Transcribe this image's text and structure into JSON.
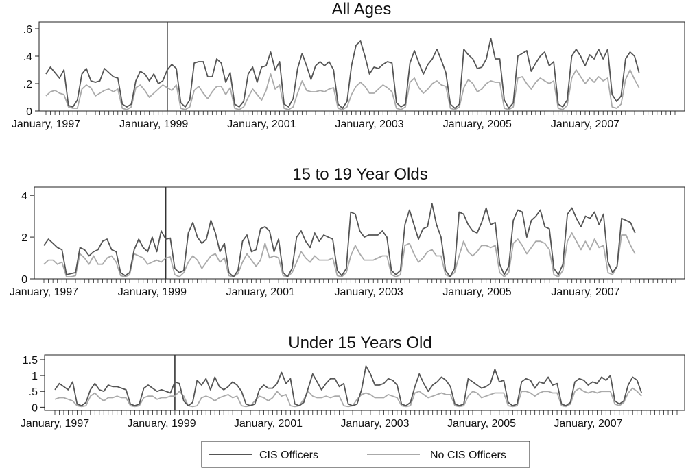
{
  "chart_data": [
    {
      "type": "line",
      "title": "All Ages",
      "ylim": [
        0,
        0.65
      ],
      "yticks": [
        0,
        0.2,
        0.4,
        0.6
      ],
      "ytick_labels": [
        "0",
        ".2",
        ".4",
        ".6"
      ],
      "xlim": [
        0,
        140
      ],
      "xticks": [
        0,
        24,
        48,
        72,
        96,
        120
      ],
      "xtick_labels": [
        "January, 1997",
        "January, 1999",
        "January, 2001",
        "January, 2003",
        "January, 2005",
        "January, 2007"
      ],
      "vline_x": 27,
      "grid": false,
      "series": [
        {
          "name": "CIS Officers",
          "values": [
            0.27,
            0.32,
            0.28,
            0.24,
            0.3,
            0.04,
            0.03,
            0.08,
            0.27,
            0.31,
            0.22,
            0.21,
            0.22,
            0.31,
            0.28,
            0.25,
            0.24,
            0.05,
            0.03,
            0.05,
            0.22,
            0.29,
            0.27,
            0.22,
            0.27,
            0.2,
            0.22,
            0.3,
            0.34,
            0.31,
            0.06,
            0.03,
            0.08,
            0.35,
            0.36,
            0.36,
            0.25,
            0.25,
            0.38,
            0.35,
            0.21,
            0.28,
            0.05,
            0.03,
            0.07,
            0.27,
            0.32,
            0.21,
            0.32,
            0.33,
            0.43,
            0.3,
            0.36,
            0.05,
            0.03,
            0.09,
            0.31,
            0.42,
            0.33,
            0.23,
            0.33,
            0.36,
            0.33,
            0.36,
            0.3,
            0.05,
            0.02,
            0.07,
            0.33,
            0.48,
            0.51,
            0.4,
            0.27,
            0.32,
            0.31,
            0.34,
            0.36,
            0.35,
            0.06,
            0.03,
            0.05,
            0.35,
            0.44,
            0.35,
            0.27,
            0.34,
            0.38,
            0.45,
            0.37,
            0.28,
            0.05,
            0.02,
            0.05,
            0.45,
            0.41,
            0.38,
            0.31,
            0.32,
            0.38,
            0.53,
            0.38,
            0.38,
            0.08,
            0.02,
            0.06,
            0.4,
            0.42,
            0.44,
            0.29,
            0.35,
            0.4,
            0.43,
            0.33,
            0.36,
            0.05,
            0.03,
            0.08,
            0.4,
            0.45,
            0.4,
            0.33,
            0.41,
            0.38,
            0.45,
            0.38,
            0.45,
            0.12,
            0.07,
            0.11,
            0.38,
            0.43,
            0.4,
            0.28
          ]
        },
        {
          "name": "No CIS Officers",
          "values": [
            0.11,
            0.14,
            0.15,
            0.13,
            0.12,
            0.03,
            0.02,
            0.02,
            0.16,
            0.19,
            0.17,
            0.11,
            0.13,
            0.15,
            0.16,
            0.14,
            0.16,
            0.02,
            0.01,
            0.03,
            0.17,
            0.19,
            0.15,
            0.1,
            0.13,
            0.16,
            0.19,
            0.17,
            0.15,
            0.19,
            0.02,
            0.01,
            0.03,
            0.15,
            0.18,
            0.13,
            0.09,
            0.14,
            0.18,
            0.18,
            0.12,
            0.17,
            0.02,
            0.01,
            0.03,
            0.1,
            0.16,
            0.12,
            0.08,
            0.15,
            0.27,
            0.16,
            0.19,
            0.02,
            0.01,
            0.03,
            0.13,
            0.22,
            0.15,
            0.14,
            0.14,
            0.15,
            0.14,
            0.16,
            0.17,
            0.02,
            0.01,
            0.03,
            0.12,
            0.18,
            0.21,
            0.18,
            0.13,
            0.13,
            0.16,
            0.19,
            0.17,
            0.14,
            0.02,
            0.01,
            0.03,
            0.21,
            0.24,
            0.17,
            0.13,
            0.16,
            0.2,
            0.22,
            0.19,
            0.18,
            0.02,
            0.01,
            0.03,
            0.17,
            0.23,
            0.2,
            0.14,
            0.16,
            0.2,
            0.22,
            0.21,
            0.21,
            0.02,
            0.01,
            0.03,
            0.24,
            0.25,
            0.2,
            0.16,
            0.21,
            0.24,
            0.22,
            0.2,
            0.22,
            0.02,
            0.01,
            0.04,
            0.24,
            0.3,
            0.25,
            0.2,
            0.24,
            0.21,
            0.25,
            0.22,
            0.24,
            0.03,
            0.02,
            0.05,
            0.23,
            0.3,
            0.23,
            0.17
          ]
        }
      ]
    },
    {
      "type": "line",
      "title": "15 to 19 Year Olds",
      "ylim": [
        0,
        4.4
      ],
      "yticks": [
        0,
        2,
        4
      ],
      "ytick_labels": [
        "0",
        "2",
        "4"
      ],
      "xlim": [
        0,
        140
      ],
      "xticks": [
        0,
        24,
        48,
        72,
        96,
        120
      ],
      "xtick_labels": [
        "January, 1997",
        "January, 1999",
        "January, 2001",
        "January, 2003",
        "January, 2005",
        "January, 2007"
      ],
      "vline_x": 27,
      "grid": false,
      "series": [
        {
          "name": "CIS Officers",
          "values": [
            1.6,
            1.9,
            1.7,
            1.5,
            1.4,
            0.2,
            0.25,
            0.3,
            1.5,
            1.4,
            1.1,
            1.3,
            1.4,
            1.8,
            1.9,
            1.4,
            1.3,
            0.3,
            0.15,
            0.3,
            1.4,
            1.9,
            1.5,
            1.3,
            2.0,
            1.3,
            2.3,
            1.9,
            1.95,
            0.5,
            0.3,
            0.4,
            2.2,
            2.7,
            2.0,
            1.7,
            1.9,
            2.8,
            2.2,
            1.3,
            1.7,
            0.3,
            0.1,
            0.4,
            1.8,
            2.1,
            1.3,
            1.4,
            2.4,
            2.5,
            2.3,
            1.3,
            1.9,
            0.3,
            0.1,
            0.5,
            2.0,
            2.3,
            1.8,
            1.5,
            2.2,
            1.8,
            2.1,
            2.0,
            1.9,
            0.4,
            0.15,
            0.5,
            3.2,
            3.1,
            2.3,
            2.0,
            2.1,
            2.1,
            2.1,
            2.3,
            2.0,
            0.4,
            0.2,
            0.4,
            2.6,
            3.3,
            2.6,
            1.9,
            2.4,
            2.5,
            3.6,
            2.6,
            2.0,
            0.4,
            0.1,
            0.5,
            3.2,
            3.1,
            2.6,
            2.3,
            2.2,
            2.7,
            3.4,
            2.6,
            2.7,
            0.7,
            0.2,
            0.6,
            2.8,
            3.3,
            3.2,
            2.0,
            2.8,
            3.0,
            3.3,
            2.5,
            2.4,
            0.5,
            0.2,
            0.7,
            3.1,
            3.4,
            2.9,
            2.5,
            3.0,
            2.9,
            3.2,
            2.6,
            3.1,
            0.8,
            0.3,
            0.6,
            2.9,
            2.8,
            2.7,
            2.2
          ]
        },
        {
          "name": "No CIS Officers",
          "values": [
            0.7,
            0.9,
            0.9,
            0.7,
            0.8,
            0.1,
            0.1,
            0.15,
            1.2,
            1.0,
            0.7,
            1.1,
            0.7,
            0.7,
            1.0,
            1.1,
            0.8,
            0.15,
            0.1,
            0.2,
            1.2,
            1.1,
            1.0,
            0.7,
            0.8,
            0.9,
            0.8,
            1.0,
            1.05,
            0.2,
            0.1,
            0.3,
            0.8,
            1.1,
            0.9,
            0.5,
            0.8,
            1.1,
            1.2,
            0.8,
            1.0,
            0.15,
            0.1,
            0.25,
            0.8,
            1.2,
            0.9,
            0.6,
            0.9,
            1.7,
            1.0,
            1.1,
            1.0,
            0.15,
            0.1,
            0.3,
            0.8,
            1.3,
            1.0,
            0.8,
            1.1,
            0.9,
            0.9,
            0.9,
            1.0,
            0.15,
            0.1,
            0.3,
            1.1,
            1.6,
            1.2,
            0.9,
            0.9,
            0.9,
            1.0,
            1.1,
            1.1,
            0.2,
            0.1,
            0.2,
            1.6,
            1.7,
            1.2,
            0.8,
            1.0,
            1.3,
            1.4,
            1.1,
            1.1,
            0.2,
            0.1,
            0.3,
            1.1,
            1.8,
            1.3,
            1.1,
            1.3,
            1.6,
            1.6,
            1.5,
            1.6,
            0.3,
            0.1,
            0.3,
            1.7,
            1.9,
            1.6,
            1.2,
            1.5,
            1.8,
            1.8,
            1.7,
            1.4,
            0.2,
            0.1,
            0.4,
            1.8,
            2.2,
            1.8,
            1.4,
            1.8,
            1.4,
            1.9,
            1.5,
            1.6,
            0.3,
            0.2,
            0.6,
            2.1,
            2.1,
            1.6,
            1.2
          ]
        }
      ]
    },
    {
      "type": "line",
      "title": "Under 15 Years Old",
      "ylim": [
        -0.1,
        1.65
      ],
      "yticks": [
        0,
        0.5,
        1,
        1.5
      ],
      "ytick_labels": [
        "0",
        ".5",
        "1",
        "1.5"
      ],
      "xlim": [
        0,
        140
      ],
      "xticks": [
        0,
        24,
        48,
        72,
        96,
        120
      ],
      "xtick_labels": [
        "January, 1997",
        "January, 1999",
        "January, 2001",
        "January, 2003",
        "January, 2005",
        "January, 2007"
      ],
      "vline_x": 27,
      "grid": false,
      "series": [
        {
          "name": "CIS Officers",
          "values": [
            0.55,
            0.75,
            0.65,
            0.55,
            0.8,
            0.1,
            0.05,
            0.15,
            0.55,
            0.75,
            0.55,
            0.5,
            0.7,
            0.65,
            0.65,
            0.6,
            0.55,
            0.1,
            0.05,
            0.1,
            0.6,
            0.7,
            0.6,
            0.5,
            0.55,
            0.5,
            0.45,
            0.8,
            0.75,
            0.2,
            0.05,
            0.15,
            0.85,
            0.7,
            0.9,
            0.55,
            0.95,
            0.65,
            0.55,
            0.65,
            0.8,
            0.7,
            0.5,
            0.1,
            0.05,
            0.1,
            0.55,
            0.7,
            0.6,
            0.6,
            0.75,
            1.1,
            0.75,
            0.9,
            0.1,
            0.05,
            0.15,
            0.6,
            1.05,
            0.8,
            0.55,
            0.75,
            0.9,
            0.9,
            0.65,
            0.75,
            0.1,
            0.05,
            0.1,
            0.55,
            1.3,
            1.05,
            0.7,
            0.7,
            0.75,
            0.9,
            0.85,
            0.7,
            0.1,
            0.05,
            0.15,
            0.65,
            1.05,
            0.75,
            0.5,
            0.7,
            0.8,
            0.95,
            0.85,
            0.65,
            0.1,
            0.05,
            0.1,
            0.9,
            0.8,
            0.7,
            0.6,
            0.65,
            0.75,
            1.2,
            0.8,
            0.85,
            0.15,
            0.05,
            0.1,
            0.8,
            0.9,
            0.85,
            0.6,
            0.8,
            0.75,
            0.95,
            0.7,
            0.75,
            0.1,
            0.05,
            0.15,
            0.8,
            0.9,
            0.85,
            0.7,
            0.8,
            0.75,
            0.95,
            0.85,
            1.0,
            0.2,
            0.1,
            0.2,
            0.7,
            0.95,
            0.85,
            0.45
          ]
        },
        {
          "name": "No CIS Officers",
          "values": [
            0.25,
            0.3,
            0.3,
            0.25,
            0.2,
            0.05,
            0.02,
            0.05,
            0.35,
            0.45,
            0.3,
            0.2,
            0.3,
            0.3,
            0.35,
            0.3,
            0.3,
            0.05,
            0.02,
            0.05,
            0.3,
            0.35,
            0.35,
            0.25,
            0.3,
            0.3,
            0.35,
            0.35,
            0.5,
            0.35,
            0.05,
            0.02,
            0.05,
            0.3,
            0.35,
            0.3,
            0.2,
            0.3,
            0.35,
            0.4,
            0.3,
            0.35,
            0.05,
            0.02,
            0.05,
            0.2,
            0.35,
            0.3,
            0.2,
            0.3,
            0.5,
            0.35,
            0.4,
            0.05,
            0.02,
            0.05,
            0.25,
            0.5,
            0.35,
            0.3,
            0.3,
            0.35,
            0.3,
            0.35,
            0.35,
            0.05,
            0.02,
            0.05,
            0.25,
            0.4,
            0.45,
            0.4,
            0.3,
            0.3,
            0.3,
            0.4,
            0.35,
            0.3,
            0.05,
            0.02,
            0.05,
            0.45,
            0.5,
            0.4,
            0.3,
            0.35,
            0.4,
            0.45,
            0.4,
            0.4,
            0.05,
            0.02,
            0.05,
            0.35,
            0.5,
            0.45,
            0.3,
            0.35,
            0.4,
            0.45,
            0.45,
            0.45,
            0.05,
            0.02,
            0.05,
            0.5,
            0.5,
            0.45,
            0.35,
            0.45,
            0.5,
            0.5,
            0.45,
            0.45,
            0.05,
            0.02,
            0.1,
            0.5,
            0.6,
            0.5,
            0.45,
            0.5,
            0.45,
            0.5,
            0.5,
            0.5,
            0.1,
            0.05,
            0.15,
            0.45,
            0.6,
            0.5,
            0.35
          ]
        }
      ]
    }
  ],
  "legend": {
    "items": [
      {
        "label": "CIS Officers",
        "color": "#555555"
      },
      {
        "label": "No CIS Officers",
        "color": "#aaaaaa"
      }
    ],
    "position": "bottom-center"
  }
}
